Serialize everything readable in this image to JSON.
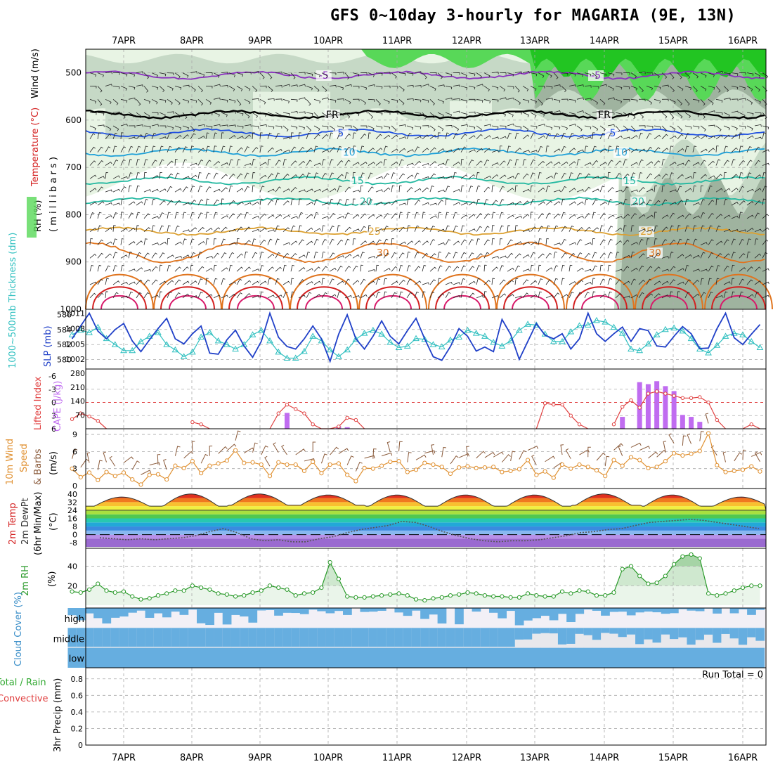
{
  "title": "GFS 0~10day 3-hourly for MAGARIA (9E, 13N)",
  "dates": [
    "7APR",
    "8APR",
    "9APR",
    "10APR",
    "11APR",
    "12APR",
    "13APR",
    "14APR",
    "15APR",
    "16APR"
  ],
  "colors": {
    "rh_light": "#e8f4e4",
    "rh_mid": "#c6d9c6",
    "rh_dark": "#9fb39f",
    "rh_bright": "#58d858",
    "rh_green": "#22c522",
    "t_red": "#d42020",
    "t_magenta": "#d81a6a",
    "t_orange": "#e0741e",
    "t_amber": "#dca030",
    "t_teal": "#22b8a0",
    "t_cyan": "#1ea0d8",
    "t_blue": "#2050e0",
    "t_purple": "#8a30c0",
    "slp": "#2040c8",
    "thick": "#30c0c0",
    "cape": "#c06cf0",
    "li": "#e04040",
    "wind": "#e09030",
    "barb": "#8a5a3a",
    "rh2m": "#2a9a2a",
    "cloud": "#66aee0"
  },
  "chart_data": [
    {
      "id": "upper-air",
      "type": "heatmap",
      "title": "GFS 0~10day 3-hourly for MAGARIA (9E, 13N)",
      "ylabel_parts": {
        "rh": "RH (%)",
        "temp": "Temperature (°C)",
        "wind": "Wind (m/s)",
        "units": "( m i l l i b a r s )"
      },
      "ylim": [
        1000,
        450
      ],
      "yticks": [
        "500",
        "600",
        "700",
        "800",
        "900",
        "1000"
      ],
      "isotherms": [
        {
          "label": "-5",
          "level": 505,
          "color": "t_purple"
        },
        {
          "label": "FR",
          "level": 588,
          "color": "black"
        },
        {
          "label": "5",
          "level": 627,
          "color": "t_blue"
        },
        {
          "label": "10",
          "level": 668,
          "color": "t_cyan"
        },
        {
          "label": "15",
          "level": 728,
          "color": "t_teal"
        },
        {
          "label": "20",
          "level": 772,
          "color": "t_teal"
        },
        {
          "label": "25",
          "level": 835,
          "color": "t_amber"
        },
        {
          "label": "30",
          "level": 880,
          "color": "t_orange"
        }
      ]
    },
    {
      "id": "slp-thickness",
      "type": "line",
      "ylabel_left": "1000~500mb Thickness (dm)",
      "ylabel_right": "SLP (mb)",
      "left_ticks": [
        "586",
        "584",
        "582",
        "580"
      ],
      "right_ticks": [
        "1011",
        "1008",
        "1005",
        "1002"
      ],
      "slp": [
        1006.0,
        1008.5,
        1011.0,
        1007.5,
        1006.0,
        1007.8,
        1009.0,
        1005.6,
        1003.5,
        1005.8,
        1008.0,
        1010.0,
        1006.0,
        1005.0,
        1007.0,
        1008.5,
        1003.2,
        1003.0,
        1005.8,
        1007.7,
        1004.6,
        1002.4,
        1005.5,
        1011.0,
        1006.3,
        1004.5,
        1004.0,
        1006.0,
        1008.5,
        1006.0,
        1001.6,
        1006.9,
        1010.7,
        1006.0,
        1004.0,
        1006.5,
        1009.5,
        1006.5,
        1005.0,
        1007.6,
        1010.0,
        1006.0,
        1002.5,
        1001.8,
        1004.5,
        1008.0,
        1006.5,
        1003.6,
        1004.4,
        1003.5,
        1009.8,
        1006.9,
        1002.0,
        1005.5,
        1009.0,
        1006.7,
        1006.0,
        1007.0,
        1004.0,
        1006.0,
        1011.0,
        1007.0,
        1005.5,
        1007.0,
        1008.3,
        1005.5,
        1008.0,
        1007.6,
        1004.6,
        1004.4,
        1006.5,
        1008.4,
        1007.0,
        1004.1,
        1004.2,
        1008.0,
        1011.0,
        1006.2,
        1004.9,
        1006.9,
        1008.8
      ],
      "thickness": [
        583.3,
        583.9,
        583.6,
        584.3,
        582.8,
        582.0,
        581.2,
        581.2,
        582.4,
        583.1,
        583.6,
        582.0,
        581.3,
        580.4,
        581.0,
        583.0,
        583.6,
        582.5,
        582.0,
        581.4,
        582.0,
        583.3,
        583.9,
        582.5,
        581.0,
        580.2,
        580.2,
        581.1,
        583.1,
        582.5,
        581.3,
        580.4,
        581.3,
        582.7,
        583.5,
        583.9,
        583.4,
        582.3,
        581.6,
        581.8,
        582.8,
        582.7,
        582.0,
        581.7,
        582.6,
        583.0,
        583.9,
        583.5,
        583.1,
        582.3,
        581.8,
        582.5,
        583.9,
        584.7,
        584.6,
        583.4,
        582.4,
        582.4,
        583.7,
        584.5,
        584.6,
        585.2,
        585.0,
        584.3,
        583.5,
        581.4,
        581.2,
        582.1,
        583.3,
        584.0,
        584.2,
        583.8,
        582.8,
        581.4,
        580.9,
        581.9,
        583.1,
        583.5,
        583.3,
        582.4,
        581.6
      ]
    },
    {
      "id": "cape-li",
      "type": "bar",
      "ylabel_left": "Lifted Index",
      "ylabel_right": "CAPE (J/kg)",
      "left_ticks": [
        "-6",
        "-3",
        "0",
        "3",
        "6"
      ],
      "right_ticks": [
        "280",
        "210",
        "140",
        "70"
      ],
      "li_points": [
        [
          0,
          3.8
        ],
        [
          1,
          2.5
        ],
        [
          2,
          3.2
        ],
        [
          3,
          4.2
        ],
        [
          4,
          6.5
        ],
        [
          14,
          4.5
        ],
        [
          15,
          5.0
        ],
        [
          16,
          6.5
        ],
        [
          23,
          6.5
        ],
        [
          24,
          2.5
        ],
        [
          25,
          0.5
        ],
        [
          26,
          1.5
        ],
        [
          27,
          2.5
        ],
        [
          28,
          5.0
        ],
        [
          29,
          6.5
        ],
        [
          30,
          6.5
        ],
        [
          31,
          5.5
        ],
        [
          32,
          3.5
        ],
        [
          33,
          4.0
        ],
        [
          34,
          6.5
        ],
        [
          42,
          6.5
        ],
        [
          54,
          6.5
        ],
        [
          55,
          0.2
        ],
        [
          56,
          0.5
        ],
        [
          57,
          0.5
        ],
        [
          58,
          3.0
        ],
        [
          59,
          5.0
        ],
        [
          60,
          6.5
        ],
        [
          63,
          5.0
        ],
        [
          64,
          1.0
        ],
        [
          65,
          -0.5
        ],
        [
          66,
          1.2
        ],
        [
          67,
          -2.0
        ],
        [
          68,
          -2.5
        ],
        [
          69,
          -2.0
        ],
        [
          70,
          -1.5
        ],
        [
          71,
          -1.0
        ],
        [
          72,
          -1.0
        ],
        [
          73,
          -1.2
        ],
        [
          74,
          0.0
        ],
        [
          75,
          4.0
        ],
        [
          76,
          6.5
        ],
        [
          78,
          6.5
        ],
        [
          79,
          5.0
        ],
        [
          80,
          6.5
        ]
      ],
      "cape_bars": [
        [
          25,
          80
        ],
        [
          31,
          12
        ],
        [
          32,
          8
        ],
        [
          64,
          60
        ],
        [
          66,
          235
        ],
        [
          67,
          225
        ],
        [
          68,
          240
        ],
        [
          69,
          215
        ],
        [
          70,
          190
        ],
        [
          71,
          70
        ],
        [
          72,
          60
        ],
        [
          73,
          35
        ]
      ]
    },
    {
      "id": "wind10m",
      "type": "line",
      "ylabel_left": "10m Wind Speed & Barbs (m/s)",
      "left_ticks": [
        "9",
        "6",
        "3",
        "0"
      ],
      "speed": [
        3.0,
        1.5,
        2.3,
        1.0,
        2.4,
        1.7,
        2.3,
        1.1,
        0.2,
        1.9,
        2.0,
        1.1,
        3.5,
        3.1,
        4.3,
        2.2,
        3.5,
        3.9,
        4.4,
        6.2,
        4.0,
        4.1,
        3.7,
        1.7,
        4.1,
        3.7,
        3.7,
        2.6,
        4.2,
        2.2,
        3.7,
        3.9,
        1.9,
        0.8,
        3.1,
        3.0,
        3.5,
        4.2,
        4.3,
        2.4,
        2.8,
        4.0,
        3.7,
        3.3,
        2.1,
        3.2,
        3.4,
        3.1,
        3.2,
        3.3,
        2.4,
        2.6,
        2.9,
        4.5,
        1.9,
        2.5,
        1.4,
        3.7,
        3.0,
        3.7,
        3.3,
        2.7,
        1.7,
        4.5,
        3.5,
        5.0,
        4.5,
        3.1,
        3.3,
        4.3,
        5.7,
        5.3,
        5.6,
        6.1,
        9.2,
        3.6,
        2.4,
        2.6,
        2.8,
        3.4,
        2.5
      ]
    },
    {
      "id": "temp2m",
      "type": "area",
      "ylabel_left": "2m Temp 2m DewPt (6hr Min/Max) (°C)",
      "left_ticks": [
        "40",
        "32",
        "24",
        "16",
        "8",
        "0",
        "-8"
      ],
      "tmax_by_day": [
        37,
        40,
        40,
        39,
        39,
        39,
        39,
        40,
        39,
        37
      ],
      "tmin_by_day": [
        28,
        28,
        29,
        29,
        28,
        28,
        28,
        29,
        28,
        28
      ],
      "dewpt": [
        -3,
        -4,
        -5,
        -4,
        -5,
        -4,
        -3,
        -1,
        3,
        6,
        2,
        -4,
        -6,
        -5,
        -7,
        -7,
        -4,
        -2,
        2,
        5,
        7,
        9,
        13,
        12,
        8,
        3,
        -1,
        -4,
        -6,
        -7,
        -6,
        -6,
        -5,
        -3,
        -1,
        2,
        3,
        5,
        6,
        9,
        12,
        13,
        14,
        15,
        14,
        12,
        10,
        8,
        6
      ]
    },
    {
      "id": "rh2m",
      "type": "area",
      "ylabel_left": "2m RH (%)",
      "left_ticks": [
        "40",
        "20"
      ],
      "rh": [
        14,
        13,
        16,
        22,
        15,
        13,
        14,
        9,
        6,
        7,
        10,
        12,
        15,
        15,
        20,
        18,
        16,
        12,
        11,
        9,
        10,
        13,
        15,
        20,
        18,
        16,
        10,
        12,
        13,
        18,
        44,
        27,
        9,
        8,
        8,
        9,
        10,
        11,
        12,
        10,
        6,
        5,
        7,
        8,
        10,
        11,
        13,
        12,
        10,
        9,
        9,
        8,
        8,
        12,
        10,
        9,
        9,
        14,
        12,
        15,
        14,
        10,
        10,
        13,
        37,
        40,
        30,
        22,
        23,
        30,
        42,
        50,
        52,
        48,
        12,
        10,
        12,
        15,
        18,
        20,
        20
      ]
    },
    {
      "id": "cloud",
      "type": "bar",
      "ylabel_left": "Cloud Cover (%)",
      "levels": [
        "high",
        "middle",
        "low"
      ]
    },
    {
      "id": "precip",
      "type": "bar",
      "ylabel_left": "3hr Precip (mm)",
      "legend_a": "Total / Rain",
      "legend_b": "Convective",
      "left_ticks": [
        "0.8",
        "0.6",
        "0.4",
        "0.2",
        "0"
      ],
      "run_total": "Run Total = 0",
      "values": []
    }
  ]
}
